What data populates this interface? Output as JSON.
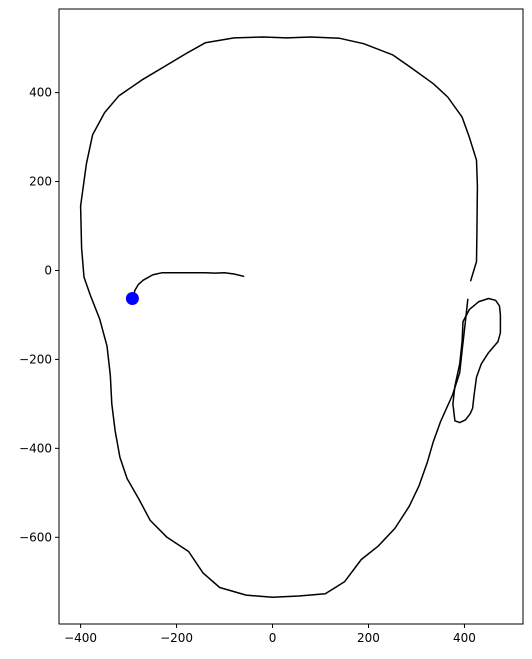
{
  "chart_data": {
    "type": "line",
    "title": "",
    "xlabel": "",
    "ylabel": "",
    "xlim": [
      -445,
      522
    ],
    "ylim": [
      -795,
      588
    ],
    "grid": false,
    "x_ticks": [
      -400,
      -200,
      0,
      200,
      400
    ],
    "x_tick_labels": [
      "−400",
      "−200",
      "0",
      "200",
      "400"
    ],
    "y_ticks": [
      400,
      200,
      0,
      -200,
      -400,
      -600
    ],
    "y_tick_labels": [
      "400",
      "200",
      "0",
      "−200",
      "−400",
      "−600"
    ],
    "series": [
      {
        "name": "",
        "color": "#000000",
        "kind": "line",
        "points": [
          [
            413,
            -23
          ],
          [
            425,
            20
          ],
          [
            426,
            83
          ],
          [
            427,
            190
          ],
          [
            425,
            248
          ],
          [
            410,
            300
          ],
          [
            395,
            345
          ],
          [
            365,
            390
          ],
          [
            335,
            420
          ],
          [
            290,
            455
          ],
          [
            250,
            485
          ],
          [
            190,
            510
          ],
          [
            140,
            522
          ],
          [
            80,
            525
          ],
          [
            30,
            523
          ],
          [
            -20,
            525
          ],
          [
            -80,
            523
          ],
          [
            -140,
            512
          ],
          [
            -180,
            488
          ],
          [
            -220,
            462
          ],
          [
            -270,
            430
          ],
          [
            -320,
            393
          ],
          [
            -350,
            355
          ],
          [
            -375,
            305
          ],
          [
            -388,
            240
          ],
          [
            -400,
            145
          ],
          [
            -398,
            50
          ],
          [
            -393,
            -15
          ],
          [
            -380,
            -55
          ],
          [
            -360,
            -110
          ],
          [
            -345,
            -170
          ],
          [
            -338,
            -235
          ],
          [
            -335,
            -300
          ],
          [
            -328,
            -360
          ],
          [
            -318,
            -420
          ],
          [
            -303,
            -468
          ],
          [
            -278,
            -515
          ],
          [
            -255,
            -562
          ],
          [
            -220,
            -600
          ],
          [
            -175,
            -632
          ],
          [
            -145,
            -680
          ],
          [
            -110,
            -713
          ],
          [
            -55,
            -730
          ],
          [
            0,
            -735
          ],
          [
            55,
            -732
          ],
          [
            110,
            -727
          ],
          [
            150,
            -700
          ],
          [
            185,
            -650
          ],
          [
            220,
            -620
          ],
          [
            255,
            -580
          ],
          [
            285,
            -530
          ],
          [
            305,
            -485
          ],
          [
            323,
            -430
          ],
          [
            335,
            -385
          ],
          [
            350,
            -340
          ],
          [
            375,
            -280
          ],
          [
            390,
            -230
          ],
          [
            395,
            -180
          ],
          [
            402,
            -115
          ],
          [
            407,
            -65
          ]
        ]
      },
      {
        "name": "",
        "color": "#000000",
        "kind": "line",
        "points": [
          [
            -290,
            -60
          ],
          [
            -287,
            -45
          ],
          [
            -280,
            -32
          ],
          [
            -270,
            -22
          ],
          [
            -250,
            -10
          ],
          [
            -230,
            -5
          ],
          [
            -200,
            -5
          ],
          [
            -160,
            -5
          ],
          [
            -140,
            -5
          ],
          [
            -120,
            -6
          ],
          [
            -100,
            -5
          ],
          [
            -80,
            -8
          ],
          [
            -60,
            -13
          ]
        ]
      },
      {
        "name": "",
        "color": "#000000",
        "kind": "line",
        "points": [
          [
            417,
            -310
          ],
          [
            412,
            -322
          ],
          [
            402,
            -336
          ],
          [
            390,
            -342
          ],
          [
            380,
            -338
          ],
          [
            376,
            -300
          ],
          [
            380,
            -260
          ],
          [
            390,
            -210
          ],
          [
            395,
            -160
          ],
          [
            397,
            -115
          ],
          [
            410,
            -88
          ],
          [
            430,
            -70
          ],
          [
            450,
            -63
          ],
          [
            465,
            -67
          ],
          [
            473,
            -80
          ],
          [
            475,
            -100
          ],
          [
            475,
            -140
          ],
          [
            470,
            -160
          ],
          [
            450,
            -185
          ],
          [
            435,
            -210
          ],
          [
            425,
            -240
          ],
          [
            420,
            -280
          ],
          [
            417,
            -310
          ]
        ]
      }
    ],
    "markers": [
      {
        "x": -292,
        "y": -63,
        "color": "#0000ff",
        "shape": "circle"
      }
    ]
  }
}
